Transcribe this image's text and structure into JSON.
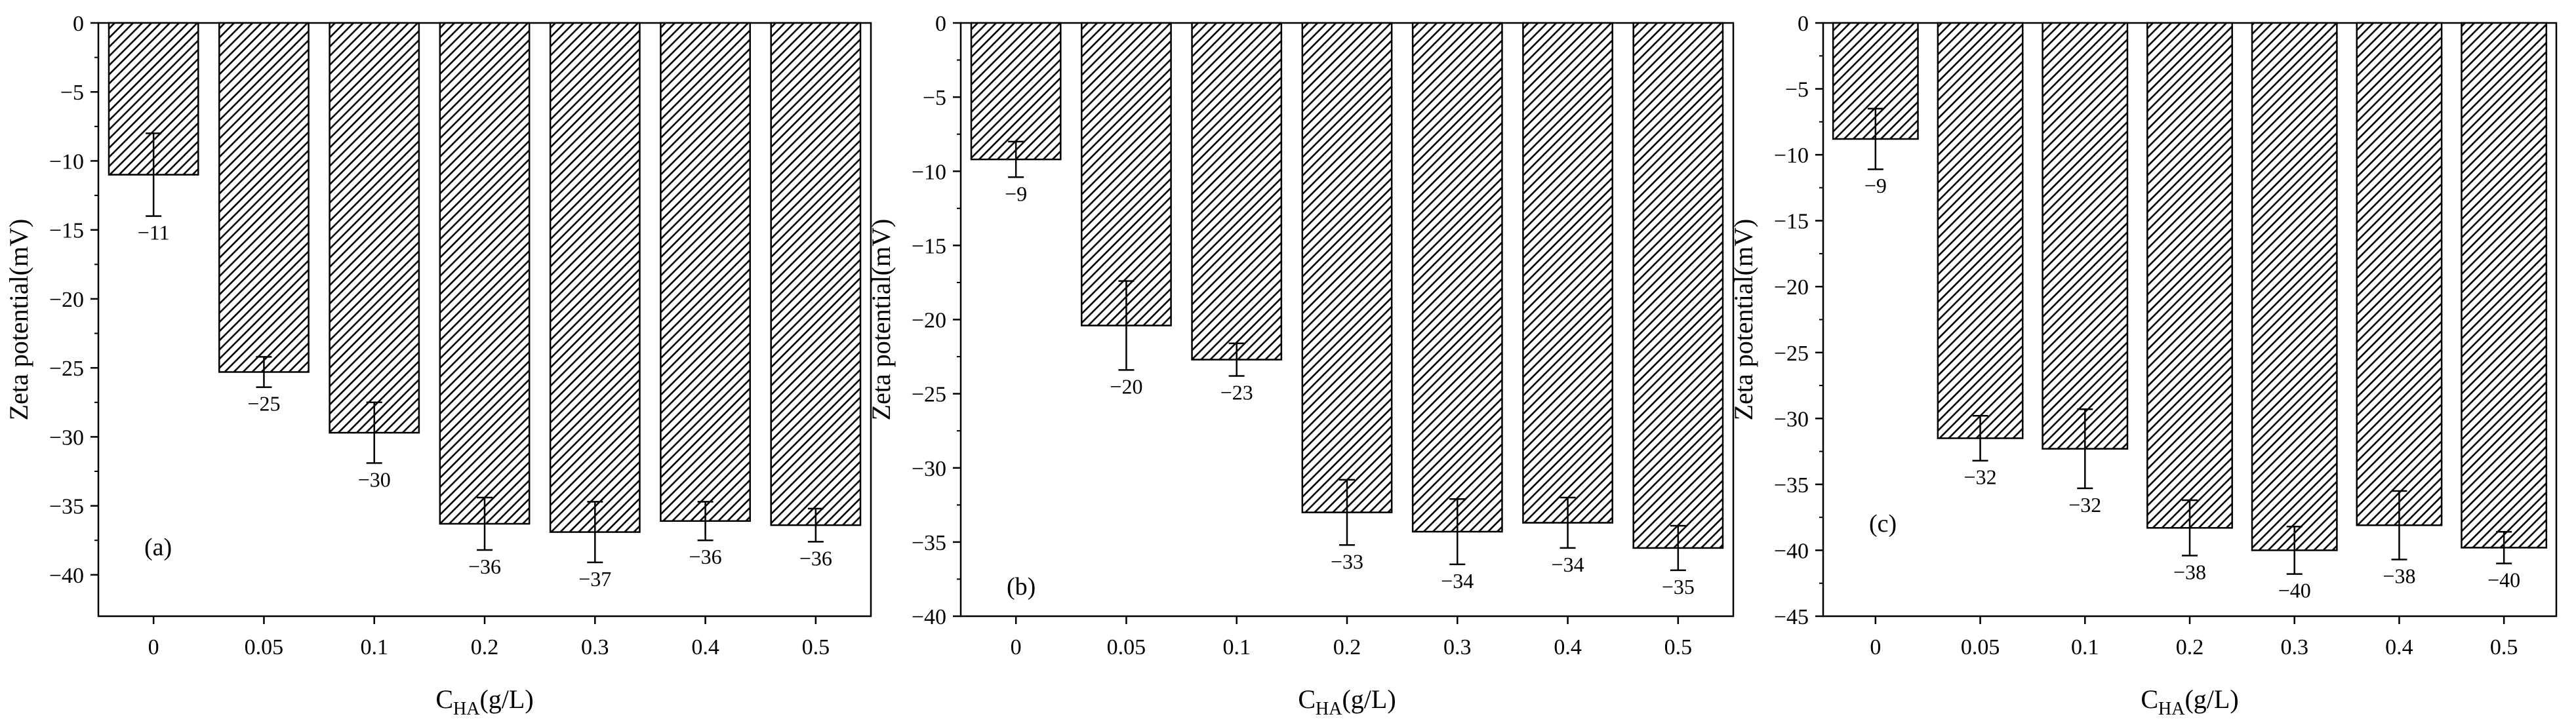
{
  "chart_data": [
    {
      "type": "bar",
      "panel_label": "(a)",
      "categories": [
        "0",
        "0.05",
        "0.1",
        "0.2",
        "0.3",
        "0.4",
        "0.5"
      ],
      "values": [
        -11,
        -25.3,
        -29.7,
        -36.3,
        -36.9,
        -36.1,
        -36.4
      ],
      "errors": [
        3.0,
        1.1,
        2.2,
        1.9,
        2.2,
        1.4,
        1.2
      ],
      "data_labels": [
        "−11",
        "−25",
        "−30",
        "−36",
        "−37",
        "−36",
        "−36"
      ],
      "ylim": [
        -43,
        0
      ],
      "yticks": [
        0,
        -5,
        -10,
        -15,
        -20,
        -25,
        -30,
        -35,
        -40
      ],
      "ytick_labels": [
        "0",
        "−5",
        "−10",
        "−15",
        "−20",
        "−25",
        "−30",
        "−35",
        "−40"
      ],
      "ylabel": "Zeta potential(mV)",
      "xlabel_main": "C",
      "xlabel_sub": "HA",
      "xlabel_tail": "(g/L)",
      "grid": false,
      "bar_fill": "hatched"
    },
    {
      "type": "bar",
      "panel_label": "(b)",
      "categories": [
        "0",
        "0.05",
        "0.1",
        "0.2",
        "0.3",
        "0.4",
        "0.5"
      ],
      "values": [
        -9.2,
        -20.4,
        -22.7,
        -33.0,
        -34.3,
        -33.7,
        -35.4
      ],
      "errors": [
        1.2,
        3.0,
        1.1,
        2.2,
        2.2,
        1.7,
        1.5
      ],
      "data_labels": [
        "−9",
        "−20",
        "−23",
        "−33",
        "−34",
        "−34",
        "−35"
      ],
      "ylim": [
        -40,
        0
      ],
      "yticks": [
        0,
        -5,
        -10,
        -15,
        -20,
        -25,
        -30,
        -35,
        -40
      ],
      "ytick_labels": [
        "0",
        "−5",
        "−10",
        "−15",
        "−20",
        "−25",
        "−30",
        "−35",
        "−40"
      ],
      "ylabel": "Zeta potential(mV)",
      "xlabel_main": "C",
      "xlabel_sub": "HA",
      "xlabel_tail": "(g/L)",
      "grid": false,
      "bar_fill": "hatched"
    },
    {
      "type": "bar",
      "panel_label": "(c)",
      "categories": [
        "0",
        "0.05",
        "0.1",
        "0.2",
        "0.3",
        "0.4",
        "0.5"
      ],
      "values": [
        -8.8,
        -31.5,
        -32.3,
        -38.3,
        -40.0,
        -38.1,
        -39.8
      ],
      "errors": [
        2.3,
        1.7,
        3.0,
        2.1,
        1.8,
        2.6,
        1.2
      ],
      "data_labels": [
        "−9",
        "−32",
        "−32",
        "−38",
        "−40",
        "−38",
        "−40"
      ],
      "ylim": [
        -45,
        0
      ],
      "yticks": [
        0,
        -5,
        -10,
        -15,
        -20,
        -25,
        -30,
        -35,
        -40,
        -45
      ],
      "ytick_labels": [
        "0",
        "−5",
        "−10",
        "−15",
        "−20",
        "−25",
        "−30",
        "−35",
        "−40",
        "−45"
      ],
      "ylabel": "Zeta potential(mV)",
      "xlabel_main": "C",
      "xlabel_sub": "HA",
      "xlabel_tail": "(g/L)",
      "grid": false,
      "bar_fill": "hatched"
    }
  ]
}
